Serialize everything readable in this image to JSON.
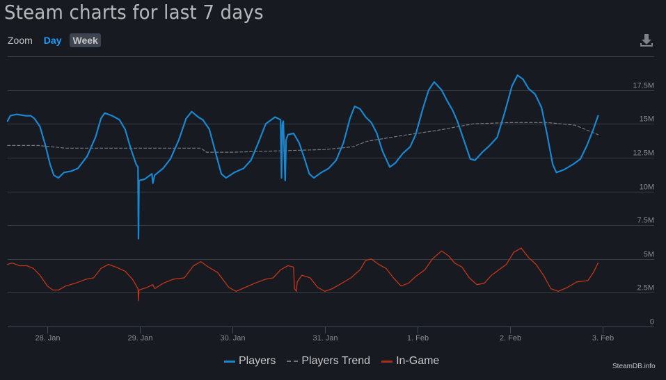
{
  "header": {
    "title": "Steam charts for last 7 days"
  },
  "zoom": {
    "label": "Zoom",
    "options": [
      "Day",
      "Week"
    ],
    "active": "Day"
  },
  "toolbar": {
    "download_icon": "download-icon"
  },
  "colors": {
    "background": "#171a21",
    "players": "#1a87d0",
    "trend": "#8a8a8a",
    "in_game": "#c2361a",
    "grid": "#3a3d44",
    "axis": "#3e4a5c"
  },
  "legend": {
    "players": "Players",
    "trend": "Players Trend",
    "in_game": "In-Game"
  },
  "credit": "SteamDB.info",
  "chart_data": {
    "type": "line",
    "title": "Steam charts for last 7 days",
    "xlabel": "",
    "ylabel": "",
    "ylim": [
      0,
      20000000
    ],
    "grid": true,
    "legend_position": "bottom",
    "y_ticks": [
      "0",
      "2.5M",
      "5M",
      "7.5M",
      "10M",
      "12.5M",
      "15M",
      "17.5M"
    ],
    "x_ticks": [
      "28. Jan",
      "29. Jan",
      "30. Jan",
      "31. Jan",
      "1. Feb",
      "2. Feb",
      "3. Feb"
    ],
    "x_units": "days since 28. Jan 00:00 (approx.)",
    "series": [
      {
        "name": "Players",
        "color": "#1a87d0",
        "style": "solid",
        "points": [
          [
            -0.43,
            15.2
          ],
          [
            -0.4,
            15.6
          ],
          [
            -0.33,
            15.7
          ],
          [
            -0.23,
            15.6
          ],
          [
            -0.18,
            15.6
          ],
          [
            -0.14,
            15.4
          ],
          [
            -0.08,
            14.8
          ],
          [
            -0.02,
            13.4
          ],
          [
            0.03,
            12.0
          ],
          [
            0.07,
            11.2
          ],
          [
            0.12,
            11.0
          ],
          [
            0.18,
            11.4
          ],
          [
            0.26,
            11.5
          ],
          [
            0.33,
            11.7
          ],
          [
            0.43,
            12.6
          ],
          [
            0.52,
            14.0
          ],
          [
            0.58,
            15.4
          ],
          [
            0.62,
            15.8
          ],
          [
            0.7,
            15.6
          ],
          [
            0.78,
            15.3
          ],
          [
            0.84,
            14.6
          ],
          [
            0.9,
            13.2
          ],
          [
            0.96,
            12.0
          ],
          [
            0.98,
            11.8
          ],
          [
            0.985,
            6.5
          ],
          [
            0.99,
            10.8
          ],
          [
            1.05,
            10.9
          ],
          [
            1.13,
            11.3
          ],
          [
            1.14,
            10.6
          ],
          [
            1.16,
            11.2
          ],
          [
            1.25,
            11.7
          ],
          [
            1.33,
            12.4
          ],
          [
            1.42,
            13.8
          ],
          [
            1.5,
            15.4
          ],
          [
            1.56,
            15.9
          ],
          [
            1.63,
            15.5
          ],
          [
            1.68,
            15.3
          ],
          [
            1.75,
            14.6
          ],
          [
            1.82,
            12.8
          ],
          [
            1.88,
            11.3
          ],
          [
            1.93,
            11.0
          ],
          [
            2.02,
            11.4
          ],
          [
            2.12,
            11.7
          ],
          [
            2.2,
            12.3
          ],
          [
            2.28,
            13.6
          ],
          [
            2.36,
            15.0
          ],
          [
            2.42,
            15.3
          ],
          [
            2.46,
            15.5
          ],
          [
            2.52,
            15.3
          ],
          [
            2.53,
            11.0
          ],
          [
            2.54,
            15.0
          ],
          [
            2.55,
            15.2
          ],
          [
            2.57,
            10.8
          ],
          [
            2.58,
            13.8
          ],
          [
            2.6,
            14.2
          ],
          [
            2.66,
            14.3
          ],
          [
            2.72,
            13.6
          ],
          [
            2.78,
            12.4
          ],
          [
            2.83,
            11.3
          ],
          [
            2.88,
            11.0
          ],
          [
            2.96,
            11.4
          ],
          [
            3.04,
            11.7
          ],
          [
            3.12,
            12.3
          ],
          [
            3.2,
            13.6
          ],
          [
            3.27,
            15.4
          ],
          [
            3.32,
            16.3
          ],
          [
            3.38,
            16.1
          ],
          [
            3.44,
            15.5
          ],
          [
            3.5,
            15.1
          ],
          [
            3.56,
            14.3
          ],
          [
            3.62,
            13.0
          ],
          [
            3.7,
            11.8
          ],
          [
            3.76,
            12.1
          ],
          [
            3.84,
            12.8
          ],
          [
            3.92,
            13.3
          ],
          [
            3.98,
            14.2
          ],
          [
            4.06,
            16.2
          ],
          [
            4.12,
            17.5
          ],
          [
            4.18,
            18.1
          ],
          [
            4.26,
            17.5
          ],
          [
            4.32,
            16.7
          ],
          [
            4.38,
            16.0
          ],
          [
            4.43,
            15.2
          ],
          [
            4.5,
            13.8
          ],
          [
            4.57,
            12.4
          ],
          [
            4.62,
            12.3
          ],
          [
            4.7,
            12.9
          ],
          [
            4.78,
            13.4
          ],
          [
            4.86,
            14.0
          ],
          [
            4.94,
            15.8
          ],
          [
            5.02,
            17.8
          ],
          [
            5.08,
            18.6
          ],
          [
            5.14,
            18.3
          ],
          [
            5.2,
            17.6
          ],
          [
            5.27,
            17.2
          ],
          [
            5.34,
            16.2
          ],
          [
            5.4,
            14.2
          ],
          [
            5.46,
            12.0
          ],
          [
            5.5,
            11.4
          ],
          [
            5.58,
            11.6
          ],
          [
            5.68,
            12.0
          ],
          [
            5.76,
            12.4
          ],
          [
            5.83,
            13.4
          ],
          [
            5.9,
            14.6
          ],
          [
            5.95,
            15.6
          ]
        ]
      },
      {
        "name": "Players Trend",
        "color": "#8a8a8a",
        "style": "dashed",
        "points": [
          [
            -0.43,
            13.4
          ],
          [
            -0.1,
            13.4
          ],
          [
            0.2,
            13.2
          ],
          [
            0.8,
            13.2
          ],
          [
            1.3,
            13.2
          ],
          [
            1.66,
            13.2
          ],
          [
            1.72,
            12.9
          ],
          [
            2.0,
            12.9
          ],
          [
            2.5,
            13.0
          ],
          [
            3.0,
            13.1
          ],
          [
            3.3,
            13.3
          ],
          [
            3.45,
            13.7
          ],
          [
            3.8,
            14.1
          ],
          [
            4.2,
            14.5
          ],
          [
            4.6,
            15.0
          ],
          [
            5.0,
            15.1
          ],
          [
            5.4,
            15.1
          ],
          [
            5.7,
            14.9
          ],
          [
            5.95,
            14.2
          ]
        ]
      },
      {
        "name": "In-Game",
        "color": "#c2361a",
        "style": "solid",
        "points": [
          [
            -0.43,
            4.6
          ],
          [
            -0.38,
            4.7
          ],
          [
            -0.3,
            4.5
          ],
          [
            -0.22,
            4.5
          ],
          [
            -0.15,
            4.3
          ],
          [
            -0.08,
            3.8
          ],
          [
            0.0,
            3.0
          ],
          [
            0.06,
            2.7
          ],
          [
            0.12,
            2.7
          ],
          [
            0.2,
            3.0
          ],
          [
            0.3,
            3.2
          ],
          [
            0.42,
            3.5
          ],
          [
            0.5,
            3.6
          ],
          [
            0.58,
            4.3
          ],
          [
            0.66,
            4.6
          ],
          [
            0.74,
            4.4
          ],
          [
            0.84,
            4.1
          ],
          [
            0.92,
            3.5
          ],
          [
            0.98,
            2.8
          ],
          [
            0.985,
            1.9
          ],
          [
            0.99,
            2.7
          ],
          [
            1.08,
            2.9
          ],
          [
            1.14,
            3.1
          ],
          [
            1.16,
            2.8
          ],
          [
            1.25,
            3.2
          ],
          [
            1.36,
            3.5
          ],
          [
            1.48,
            3.6
          ],
          [
            1.58,
            4.5
          ],
          [
            1.66,
            4.8
          ],
          [
            1.74,
            4.4
          ],
          [
            1.84,
            4.0
          ],
          [
            1.96,
            2.9
          ],
          [
            2.04,
            2.6
          ],
          [
            2.14,
            2.9
          ],
          [
            2.24,
            3.2
          ],
          [
            2.36,
            3.5
          ],
          [
            2.44,
            3.6
          ],
          [
            2.52,
            4.2
          ],
          [
            2.6,
            4.5
          ],
          [
            2.66,
            4.4
          ],
          [
            2.67,
            2.8
          ],
          [
            2.69,
            2.6
          ],
          [
            2.7,
            3.3
          ],
          [
            2.75,
            3.8
          ],
          [
            2.84,
            3.6
          ],
          [
            2.92,
            2.9
          ],
          [
            3.0,
            2.6
          ],
          [
            3.08,
            2.8
          ],
          [
            3.18,
            3.2
          ],
          [
            3.28,
            3.6
          ],
          [
            3.38,
            4.2
          ],
          [
            3.44,
            4.9
          ],
          [
            3.5,
            5.0
          ],
          [
            3.58,
            4.6
          ],
          [
            3.66,
            4.3
          ],
          [
            3.74,
            3.6
          ],
          [
            3.82,
            3.0
          ],
          [
            3.9,
            3.2
          ],
          [
            3.98,
            3.7
          ],
          [
            4.08,
            4.2
          ],
          [
            4.16,
            5.0
          ],
          [
            4.26,
            5.6
          ],
          [
            4.34,
            5.2
          ],
          [
            4.4,
            4.7
          ],
          [
            4.48,
            4.4
          ],
          [
            4.56,
            3.6
          ],
          [
            4.64,
            3.1
          ],
          [
            4.72,
            3.2
          ],
          [
            4.8,
            3.8
          ],
          [
            4.88,
            4.2
          ],
          [
            4.96,
            4.6
          ],
          [
            5.04,
            5.5
          ],
          [
            5.12,
            5.8
          ],
          [
            5.2,
            5.1
          ],
          [
            5.28,
            4.6
          ],
          [
            5.36,
            3.8
          ],
          [
            5.44,
            2.8
          ],
          [
            5.52,
            2.6
          ],
          [
            5.62,
            2.9
          ],
          [
            5.72,
            3.3
          ],
          [
            5.84,
            3.4
          ],
          [
            5.9,
            4.0
          ],
          [
            5.95,
            4.7
          ]
        ]
      }
    ]
  }
}
